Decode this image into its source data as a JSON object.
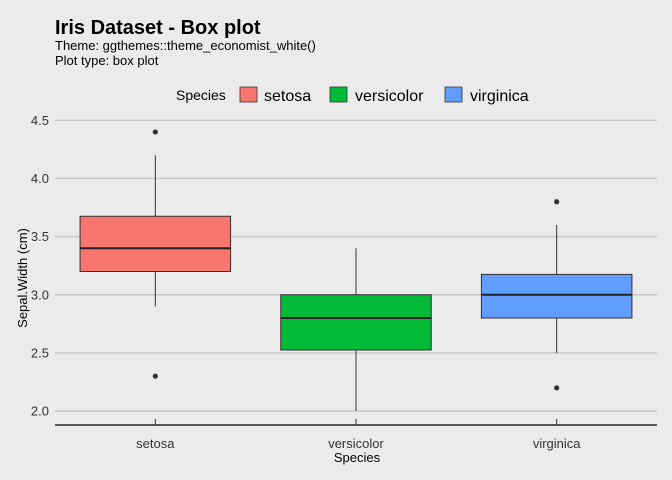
{
  "chart_data": {
    "type": "box",
    "title": "Iris Dataset - Box plot",
    "subtitle_lines": [
      "Theme: ggthemes::theme_economist_white()",
      "Plot type: box plot"
    ],
    "xlabel": "Species",
    "ylabel": "Sepal.Width (cm)",
    "ylim": [
      1.88,
      4.52
    ],
    "yticks": [
      "2.0",
      "2.5",
      "3.0",
      "3.5",
      "4.0",
      "4.5"
    ],
    "ytick_values": [
      2.0,
      2.5,
      3.0,
      3.5,
      4.0,
      4.5
    ],
    "grid": "horizontal",
    "legend": {
      "title": "Species",
      "position": "top",
      "entries": [
        "setosa",
        "versicolor",
        "virginica"
      ]
    },
    "categories": [
      "setosa",
      "versicolor",
      "virginica"
    ],
    "colors": [
      "#f8766d",
      "#00ba38",
      "#619cff"
    ],
    "boxes": [
      {
        "category": "setosa",
        "whisker_low": 2.9,
        "q1": 3.2,
        "median": 3.4,
        "q3": 3.675,
        "whisker_high": 4.2,
        "outliers": [
          4.4,
          2.3
        ]
      },
      {
        "category": "versicolor",
        "whisker_low": 2.0,
        "q1": 2.525,
        "median": 2.8,
        "q3": 3.0,
        "whisker_high": 3.4,
        "outliers": []
      },
      {
        "category": "virginica",
        "whisker_low": 2.5,
        "q1": 2.8,
        "median": 3.0,
        "q3": 3.175,
        "whisker_high": 3.6,
        "outliers": [
          3.8,
          2.2
        ]
      }
    ]
  }
}
